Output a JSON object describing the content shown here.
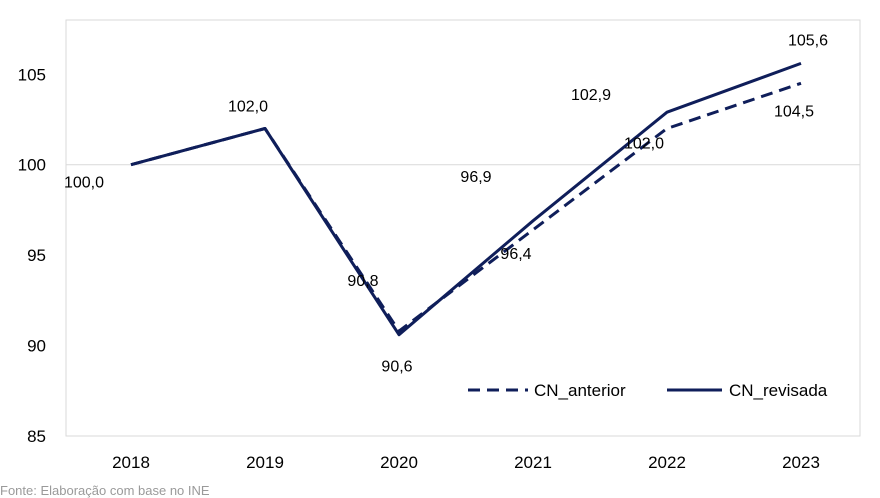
{
  "chart_data": {
    "type": "line",
    "x": [
      "2018",
      "2019",
      "2020",
      "2021",
      "2022",
      "2023"
    ],
    "series": [
      {
        "name": "CN_anterior",
        "style": "dashed",
        "color": "#0f1e5a",
        "values": [
          100.0,
          102.0,
          90.8,
          96.4,
          102.0,
          104.5
        ]
      },
      {
        "name": "CN_revisada",
        "style": "solid",
        "color": "#0f1e5a",
        "values": [
          100.0,
          102.0,
          90.6,
          96.9,
          102.9,
          105.6
        ]
      }
    ],
    "data_labels": [
      "100,0",
      "102,0",
      "90,8",
      "90,6",
      "96,9",
      "96,4",
      "102,9",
      "102,0",
      "105,6",
      "104,5"
    ],
    "yticks": [
      "85",
      "90",
      "95",
      "100",
      "105"
    ],
    "ylim": [
      85,
      108
    ],
    "reference_line": 100,
    "legend_position": "bottom-right",
    "grid": false
  },
  "source_note": "Fonte: Elaboração com base no INE"
}
